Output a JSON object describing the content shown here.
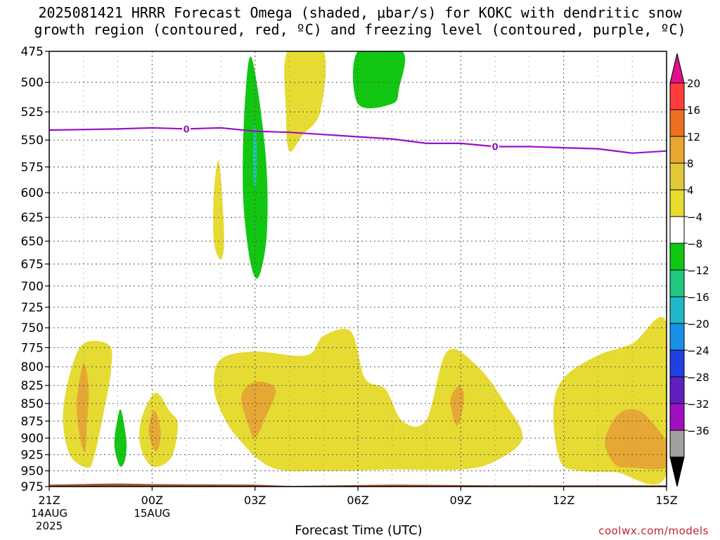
{
  "chart_data": {
    "type": "contour",
    "title_line1": "2025081421 HRRR Forecast Omega (shaded, μbar/s) for KOKC with dendritic snow",
    "title_line2": "growth region (contoured, red, ºC) and freezing level (contoured, purple, ºC)",
    "xlabel": "Forecast Time (UTC)",
    "x_ticks": [
      {
        "hour": 0,
        "label": "21Z",
        "sub1": "14AUG",
        "sub2": "2025"
      },
      {
        "hour": 3,
        "label": "00Z",
        "sub1": "15AUG",
        "sub2": ""
      },
      {
        "hour": 6,
        "label": "03Z",
        "sub1": "",
        "sub2": ""
      },
      {
        "hour": 9,
        "label": "06Z",
        "sub1": "",
        "sub2": ""
      },
      {
        "hour": 12,
        "label": "09Z",
        "sub1": "",
        "sub2": ""
      },
      {
        "hour": 15,
        "label": "12Z",
        "sub1": "",
        "sub2": ""
      },
      {
        "hour": 18,
        "label": "15Z",
        "sub1": "",
        "sub2": ""
      }
    ],
    "y_ticks": [
      "475",
      "500",
      "525",
      "550",
      "575",
      "600",
      "625",
      "650",
      "675",
      "700",
      "725",
      "750",
      "775",
      "800",
      "825",
      "850",
      "875",
      "900",
      "925",
      "950",
      "975"
    ],
    "xlim": [
      0,
      18
    ],
    "ylim_hpa": [
      975,
      475
    ],
    "y_scale": "log-pressure",
    "grid": true,
    "colorbar": {
      "labels": [
        "20",
        "16",
        "12",
        "8",
        "4",
        "−4",
        "−8",
        "−12",
        "−16",
        "−20",
        "−24",
        "−28",
        "−32",
        "−36"
      ],
      "colors": [
        "#ff3c3c",
        "#ec7020",
        "#e8a830",
        "#e2c838",
        "#e8dc30",
        "#ffffff",
        "#10c810",
        "#20c880",
        "#20b8c8",
        "#1890e8",
        "#2040e0",
        "#6020c0",
        "#a010c0",
        "#a0a0a0"
      ],
      "top_arrow_color": "#e0108a",
      "bottom_arrow_color": "#000000"
    },
    "freezing_level": {
      "color": "#9a10c8",
      "contour_label": "0",
      "label_hours": [
        4.0,
        13.0
      ],
      "points": [
        [
          0,
          541
        ],
        [
          2,
          540
        ],
        [
          3,
          539
        ],
        [
          4,
          540
        ],
        [
          5,
          539
        ],
        [
          6,
          542
        ],
        [
          7,
          543
        ],
        [
          8,
          545
        ],
        [
          9,
          547
        ],
        [
          10,
          549
        ],
        [
          11,
          553
        ],
        [
          12,
          553
        ],
        [
          13,
          556
        ],
        [
          14,
          556
        ],
        [
          15,
          557
        ],
        [
          16,
          558
        ],
        [
          17,
          562
        ],
        [
          18,
          560
        ]
      ]
    },
    "omega_regions": [
      {
        "level": "4",
        "color": "#e6db33",
        "points": [
          [
            0.6,
            925
          ],
          [
            0.4,
            870
          ],
          [
            0.6,
            810
          ],
          [
            1.0,
            770
          ],
          [
            1.75,
            772
          ],
          [
            1.8,
            805
          ],
          [
            1.6,
            860
          ],
          [
            1.3,
            930
          ],
          [
            1.1,
            945
          ]
        ]
      },
      {
        "level": "8",
        "color": "#e6a834",
        "points": [
          [
            0.9,
            900
          ],
          [
            0.8,
            850
          ],
          [
            1.0,
            795
          ],
          [
            1.15,
            830
          ],
          [
            1.1,
            880
          ],
          [
            1.05,
            920
          ]
        ]
      },
      {
        "level": "−4",
        "color": "#11c711",
        "points": [
          [
            1.9,
            910
          ],
          [
            2.0,
            870
          ],
          [
            2.1,
            860
          ],
          [
            2.25,
            905
          ],
          [
            2.2,
            935
          ],
          [
            2.05,
            942
          ]
        ]
      },
      {
        "level": "4",
        "color": "#e6db33",
        "points": [
          [
            2.7,
            870
          ],
          [
            3.1,
            835
          ],
          [
            3.5,
            860
          ],
          [
            3.75,
            880
          ],
          [
            3.55,
            930
          ],
          [
            3.0,
            943
          ],
          [
            2.65,
            910
          ]
        ]
      },
      {
        "level": "8",
        "color": "#e6a834",
        "points": [
          [
            2.9,
            890
          ],
          [
            3.05,
            860
          ],
          [
            3.2,
            875
          ],
          [
            3.25,
            900
          ],
          [
            3.1,
            920
          ]
        ]
      },
      {
        "level": "4",
        "color": "#e6db33",
        "points": [
          [
            4.8,
            600
          ],
          [
            4.95,
            570
          ],
          [
            5.1,
            645
          ],
          [
            5.0,
            670
          ],
          [
            4.8,
            650
          ]
        ]
      },
      {
        "level": "−4",
        "color": "#11c711",
        "points": [
          [
            5.9,
            480
          ],
          [
            6.3,
            560
          ],
          [
            6.35,
            640
          ],
          [
            6.1,
            690
          ],
          [
            5.85,
            670
          ],
          [
            5.65,
            600
          ],
          [
            5.7,
            520
          ]
        ]
      },
      {
        "level": "4",
        "color": "#e6db33",
        "points": [
          [
            6.95,
            475
          ],
          [
            8.0,
            475
          ],
          [
            7.9,
            525
          ],
          [
            7.4,
            545
          ],
          [
            7.0,
            560
          ],
          [
            6.9,
            525
          ]
        ]
      },
      {
        "level": "−4",
        "color": "#11c711",
        "points": [
          [
            9.0,
            475
          ],
          [
            10.3,
            475
          ],
          [
            10.2,
            505
          ],
          [
            10.0,
            518
          ],
          [
            9.0,
            518
          ]
        ]
      },
      {
        "level": "4",
        "color": "#e6db33",
        "points": [
          [
            4.8,
            825
          ],
          [
            5.0,
            790
          ],
          [
            6.0,
            780
          ],
          [
            7.5,
            785
          ],
          [
            8.0,
            760
          ],
          [
            8.8,
            755
          ],
          [
            9.2,
            815
          ],
          [
            9.8,
            830
          ],
          [
            10.3,
            875
          ],
          [
            11.0,
            873
          ],
          [
            11.6,
            780
          ],
          [
            12.5,
            800
          ],
          [
            13.3,
            850
          ],
          [
            13.8,
            900
          ],
          [
            13.0,
            935
          ],
          [
            12.0,
            948
          ],
          [
            10.0,
            948
          ],
          [
            8.0,
            950
          ],
          [
            6.5,
            945
          ],
          [
            5.5,
            900
          ],
          [
            5.0,
            860
          ]
        ]
      },
      {
        "level": "8",
        "color": "#e6a834",
        "points": [
          [
            5.6,
            840
          ],
          [
            6.0,
            820
          ],
          [
            6.6,
            830
          ],
          [
            6.3,
            870
          ],
          [
            6.0,
            900
          ],
          [
            5.8,
            880
          ]
        ]
      },
      {
        "level": "8",
        "color": "#e6a834",
        "points": [
          [
            11.7,
            845
          ],
          [
            11.95,
            825
          ],
          [
            12.1,
            840
          ],
          [
            12.0,
            870
          ],
          [
            11.85,
            880
          ]
        ]
      },
      {
        "level": "4",
        "color": "#e6db33",
        "points": [
          [
            14.7,
            860
          ],
          [
            15.0,
            815
          ],
          [
            16.0,
            785
          ],
          [
            17.0,
            770
          ],
          [
            18.0,
            745
          ],
          [
            18.0,
            955
          ],
          [
            16.5,
            952
          ],
          [
            15.5,
            950
          ],
          [
            14.9,
            935
          ]
        ]
      },
      {
        "level": "8",
        "color": "#e6a834",
        "points": [
          [
            16.2,
            905
          ],
          [
            16.6,
            865
          ],
          [
            17.2,
            860
          ],
          [
            17.8,
            890
          ],
          [
            18.0,
            910
          ],
          [
            18.0,
            945
          ],
          [
            17.0,
            945
          ],
          [
            16.5,
            940
          ]
        ]
      }
    ],
    "terrain": {
      "color": "#a0522d",
      "points": [
        [
          0,
          972
        ],
        [
          2,
          970
        ],
        [
          3,
          971
        ],
        [
          6,
          972
        ],
        [
          7,
          974
        ],
        [
          10,
          972
        ],
        [
          13,
          973
        ],
        [
          18,
          973
        ]
      ]
    }
  },
  "footer": {
    "credit": "coolwx.com/models"
  }
}
